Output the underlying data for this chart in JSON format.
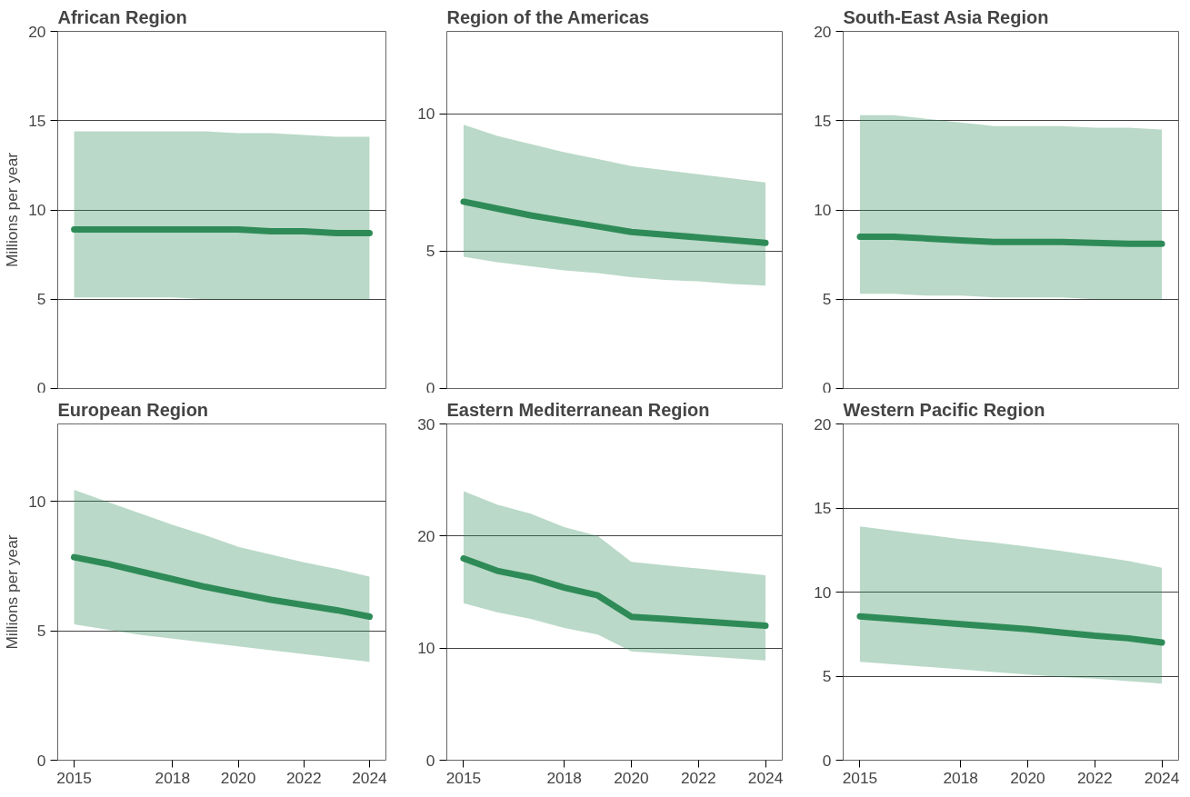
{
  "chart_data": [
    {
      "type": "line",
      "title": "African Region",
      "ylabel": "Millions per year",
      "x": [
        2015,
        2016,
        2017,
        2018,
        2019,
        2020,
        2021,
        2022,
        2023,
        2024
      ],
      "xlim": [
        2014.5,
        2024.5
      ],
      "ylim": [
        0,
        20
      ],
      "yticks": [
        0,
        5,
        10,
        15,
        20
      ],
      "xticks": [
        2015,
        2018,
        2020,
        2022,
        2024
      ],
      "grid": "y",
      "tick_labels": "y",
      "series": [
        {
          "color": "#2e8b57",
          "values": [
            8.9,
            8.9,
            8.9,
            8.9,
            8.9,
            8.9,
            8.8,
            8.8,
            8.7,
            8.7
          ],
          "lower": [
            5.1,
            5.1,
            5.1,
            5.1,
            5.0,
            5.0,
            5.0,
            5.0,
            5.0,
            5.0
          ],
          "upper": [
            14.4,
            14.4,
            14.4,
            14.4,
            14.4,
            14.3,
            14.3,
            14.2,
            14.1,
            14.1
          ]
        }
      ]
    },
    {
      "type": "line",
      "title": "Region of the Americas",
      "x": [
        2015,
        2016,
        2017,
        2018,
        2019,
        2020,
        2021,
        2022,
        2023,
        2024
      ],
      "xlim": [
        2014.5,
        2024.5
      ],
      "ylim": [
        0,
        13
      ],
      "yticks": [
        0,
        5,
        10
      ],
      "xticks": [
        2015,
        2018,
        2020,
        2022,
        2024
      ],
      "grid": "y",
      "tick_labels": "y",
      "series": [
        {
          "color": "#2e8b57",
          "values": [
            6.8,
            6.55,
            6.3,
            6.1,
            5.9,
            5.7,
            5.6,
            5.5,
            5.4,
            5.3
          ],
          "lower": [
            4.8,
            4.6,
            4.45,
            4.3,
            4.2,
            4.05,
            3.95,
            3.9,
            3.8,
            3.75
          ],
          "upper": [
            9.6,
            9.2,
            8.9,
            8.6,
            8.35,
            8.1,
            7.95,
            7.8,
            7.65,
            7.5
          ]
        }
      ]
    },
    {
      "type": "line",
      "title": "South-East Asia Region",
      "x": [
        2015,
        2016,
        2017,
        2018,
        2019,
        2020,
        2021,
        2022,
        2023,
        2024
      ],
      "xlim": [
        2014.5,
        2024.5
      ],
      "ylim": [
        0,
        20
      ],
      "yticks": [
        0,
        5,
        10,
        15,
        20
      ],
      "xticks": [
        2015,
        2018,
        2020,
        2022,
        2024
      ],
      "grid": "y",
      "tick_labels": "y",
      "series": [
        {
          "color": "#2e8b57",
          "values": [
            8.5,
            8.5,
            8.4,
            8.3,
            8.2,
            8.2,
            8.2,
            8.15,
            8.1,
            8.1
          ],
          "lower": [
            5.3,
            5.3,
            5.2,
            5.2,
            5.1,
            5.1,
            5.1,
            5.0,
            5.0,
            5.0
          ],
          "upper": [
            15.3,
            15.3,
            15.1,
            14.9,
            14.7,
            14.7,
            14.7,
            14.6,
            14.6,
            14.5
          ]
        }
      ]
    },
    {
      "type": "line",
      "title": "European Region",
      "ylabel": "Millions per year",
      "x": [
        2015,
        2016,
        2017,
        2018,
        2019,
        2020,
        2021,
        2022,
        2023,
        2024
      ],
      "xlim": [
        2014.5,
        2024.5
      ],
      "ylim": [
        0,
        13
      ],
      "yticks": [
        0,
        5,
        10
      ],
      "xticks": [
        2015,
        2018,
        2020,
        2022,
        2024
      ],
      "grid": "y",
      "series": [
        {
          "color": "#2e8b57",
          "values": [
            7.85,
            7.6,
            7.3,
            7.0,
            6.7,
            6.45,
            6.2,
            6.0,
            5.8,
            5.55
          ],
          "lower": [
            5.25,
            5.05,
            4.85,
            4.7,
            4.55,
            4.4,
            4.25,
            4.1,
            3.95,
            3.8
          ],
          "upper": [
            10.45,
            10.0,
            9.55,
            9.1,
            8.7,
            8.25,
            7.95,
            7.65,
            7.4,
            7.1
          ]
        }
      ]
    },
    {
      "type": "line",
      "title": "Eastern Mediterranean Region",
      "x": [
        2015,
        2016,
        2017,
        2018,
        2019,
        2020,
        2021,
        2022,
        2023,
        2024
      ],
      "xlim": [
        2014.5,
        2024.5
      ],
      "ylim": [
        0,
        30
      ],
      "yticks": [
        0,
        10,
        20,
        30
      ],
      "xticks": [
        2015,
        2018,
        2020,
        2022,
        2024
      ],
      "grid": "y",
      "series": [
        {
          "color": "#2e8b57",
          "values": [
            18.0,
            16.9,
            16.3,
            15.4,
            14.7,
            12.8,
            12.6,
            12.4,
            12.2,
            12.0
          ],
          "lower": [
            14.0,
            13.2,
            12.6,
            11.8,
            11.2,
            9.7,
            9.5,
            9.3,
            9.1,
            8.9
          ],
          "upper": [
            24.0,
            22.8,
            22.0,
            20.8,
            20.0,
            17.7,
            17.4,
            17.1,
            16.8,
            16.5
          ]
        }
      ]
    },
    {
      "type": "line",
      "title": "Western Pacific Region",
      "x": [
        2015,
        2016,
        2017,
        2018,
        2019,
        2020,
        2021,
        2022,
        2023,
        2024
      ],
      "xlim": [
        2014.5,
        2024.5
      ],
      "ylim": [
        0,
        20
      ],
      "yticks": [
        0,
        5,
        10,
        15,
        20
      ],
      "xticks": [
        2015,
        2018,
        2020,
        2022,
        2024
      ],
      "grid": "y",
      "series": [
        {
          "color": "#2e8b57",
          "values": [
            8.55,
            8.4,
            8.25,
            8.1,
            7.95,
            7.8,
            7.6,
            7.4,
            7.25,
            7.0
          ],
          "lower": [
            5.85,
            5.7,
            5.55,
            5.4,
            5.25,
            5.1,
            4.95,
            4.85,
            4.7,
            4.55
          ],
          "upper": [
            13.9,
            13.65,
            13.4,
            13.15,
            12.95,
            12.7,
            12.45,
            12.15,
            11.85,
            11.45
          ]
        }
      ]
    }
  ]
}
